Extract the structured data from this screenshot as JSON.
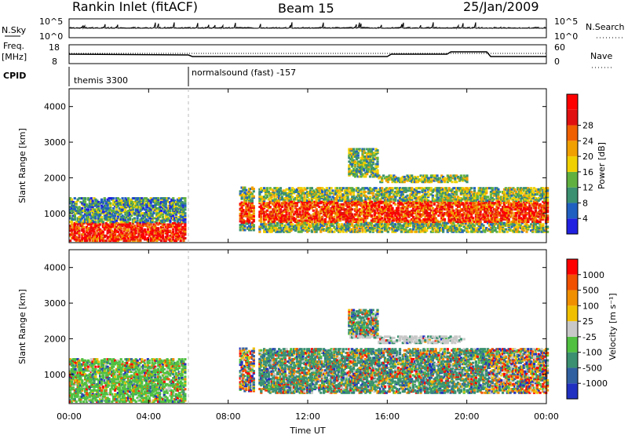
{
  "header": {
    "title_left": "Rankin Inlet (fitACF)",
    "title_center": "Beam 15",
    "title_right": "25/Jan/2009"
  },
  "nsky_panel": {
    "left_label": "N.Sky",
    "right_label": "N.Search",
    "left_ticks": [
      "10^5",
      "10^0"
    ],
    "right_ticks": [
      "10^5",
      "10^0"
    ]
  },
  "freq_panel": {
    "left_label_line1": "Freq.",
    "left_label_line2": "[MHz]",
    "left_ticks": [
      "18",
      "8"
    ],
    "right_ticks": [
      "60",
      "0"
    ],
    "right_label": "Nave"
  },
  "cpid_panel": {
    "label": "CPID",
    "segments": [
      {
        "start_hour": 0,
        "end_hour": 6,
        "name": "themis 3300"
      },
      {
        "start_hour": 6,
        "end_hour": 24,
        "name": "normalsound (fast) -157"
      }
    ]
  },
  "chart_data": [
    {
      "type": "heatmap",
      "panel": "power",
      "xlabel": "Time UT",
      "ylabel": "Slant Range [km]",
      "xlim": [
        0,
        24
      ],
      "ylim": [
        180,
        4500
      ],
      "x_ticks": [
        "00:00",
        "04:00",
        "08:00",
        "12:00",
        "16:00",
        "20:00",
        "00:00"
      ],
      "y_ticks": [
        1000,
        2000,
        3000,
        4000
      ],
      "colorbar": {
        "label": "Power [dB]",
        "ticks": [
          "4",
          "8",
          "12",
          "16",
          "20",
          "24",
          "28"
        ],
        "colors": [
          "#2020e0",
          "#2060c0",
          "#3a9070",
          "#60b040",
          "#f0d000",
          "#f0a000",
          "#f06000",
          "#e01010",
          "#ff0000"
        ]
      },
      "ground_scatter_band": {
        "hours": [
          0,
          5.5
        ],
        "range_km": [
          200,
          700
        ]
      },
      "main_band": {
        "hours": [
          9.5,
          24
        ],
        "range_km": [
          500,
          1600
        ]
      }
    },
    {
      "type": "heatmap",
      "panel": "velocity",
      "xlabel": "Time UT",
      "ylabel": "Slant Range [km]",
      "xlim": [
        0,
        24
      ],
      "ylim": [
        180,
        4500
      ],
      "x_ticks": [
        "00:00",
        "04:00",
        "08:00",
        "12:00",
        "16:00",
        "20:00",
        "00:00"
      ],
      "y_ticks": [
        1000,
        2000,
        3000,
        4000
      ],
      "colorbar": {
        "label": "Velocity [m s⁻¹]",
        "ticks": [
          "1000",
          "500",
          "100",
          "25",
          "-25",
          "-100",
          "-500",
          "-1000"
        ],
        "colors": [
          "#2030c0",
          "#3060a0",
          "#3a9070",
          "#50c040",
          "#c8c8c8",
          "#f0c000",
          "#f09000",
          "#f05000",
          "#ff0000"
        ]
      }
    }
  ]
}
